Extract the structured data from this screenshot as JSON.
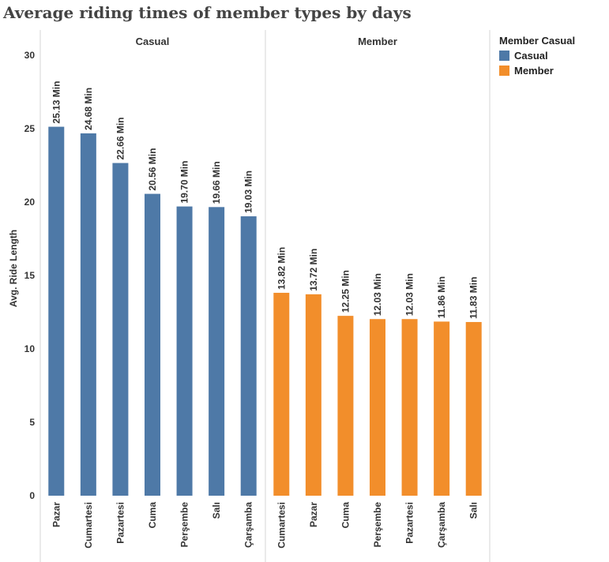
{
  "title": "Average riding times of member types by days",
  "colors": {
    "Casual": "#4e79a7",
    "Member": "#f28e2b"
  },
  "legend": {
    "title": "Member Casual",
    "items": [
      "Casual",
      "Member"
    ]
  },
  "chart_data": {
    "type": "bar",
    "title": "Average riding times of member types by days",
    "ylabel": "Avg. Ride Length",
    "ylim": [
      0,
      30
    ],
    "yticks": [
      0,
      5,
      10,
      15,
      20,
      25,
      30
    ],
    "value_suffix": " Min",
    "grid": false,
    "legend_position": "right",
    "panels": [
      {
        "name": "Casual",
        "categories": [
          "Pazar",
          "Cumartesi",
          "Pazartesi",
          "Cuma",
          "Perşembe",
          "Salı",
          "Çarşamba"
        ],
        "values": [
          25.13,
          24.68,
          22.66,
          20.56,
          19.7,
          19.66,
          19.03
        ],
        "labels": [
          "25.13 Min",
          "24.68 Min",
          "22.66 Min",
          "20.56 Min",
          "19.70 Min",
          "19.66 Min",
          "19.03 Min"
        ]
      },
      {
        "name": "Member",
        "categories": [
          "Cumartesi",
          "Pazar",
          "Cuma",
          "Perşembe",
          "Pazartesi",
          "Çarşamba",
          "Salı"
        ],
        "values": [
          13.82,
          13.72,
          12.25,
          12.03,
          12.03,
          11.86,
          11.83
        ],
        "labels": [
          "13.82 Min",
          "13.72 Min",
          "12.25 Min",
          "12.03 Min",
          "12.03 Min",
          "11.86 Min",
          "11.83 Min"
        ]
      }
    ]
  }
}
